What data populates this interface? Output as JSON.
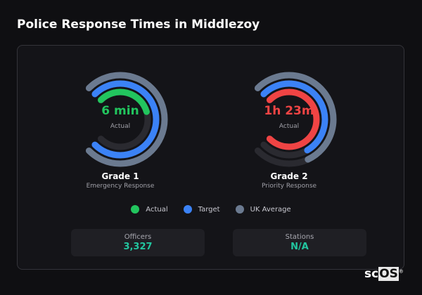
{
  "title": "Police Response Times in Middlezoy",
  "colors": {
    "actual_good": "#22c55e",
    "actual_bad": "#ef4444",
    "target": "#3b82f6",
    "uk_average": "#6b7a90",
    "track": "#2a2a30"
  },
  "gauges": [
    {
      "name": "Grade 1",
      "description": "Emergency Response",
      "value": "6 min",
      "value_label": "Actual",
      "value_color": "#22c55e",
      "actual_fraction": 0.44,
      "target_fraction": 1.0,
      "uk_average_fraction": 1.0
    },
    {
      "name": "Grade 2",
      "description": "Priority Response",
      "value": "1h 23m",
      "value_label": "Actual",
      "value_color": "#ef4444",
      "actual_fraction": 1.0,
      "target_fraction": 0.72,
      "uk_average_fraction": 0.74
    }
  ],
  "legend": [
    {
      "label": "Actual",
      "color": "#22c55e"
    },
    {
      "label": "Target",
      "color": "#3b82f6"
    },
    {
      "label": "UK Average",
      "color": "#6b7a90"
    }
  ],
  "stats": [
    {
      "label": "Officers",
      "value": "3,327"
    },
    {
      "label": "Stations",
      "value": "N/A"
    }
  ],
  "logo": {
    "text_plain": "sc",
    "text_boxed": "OS",
    "mark": "®"
  }
}
